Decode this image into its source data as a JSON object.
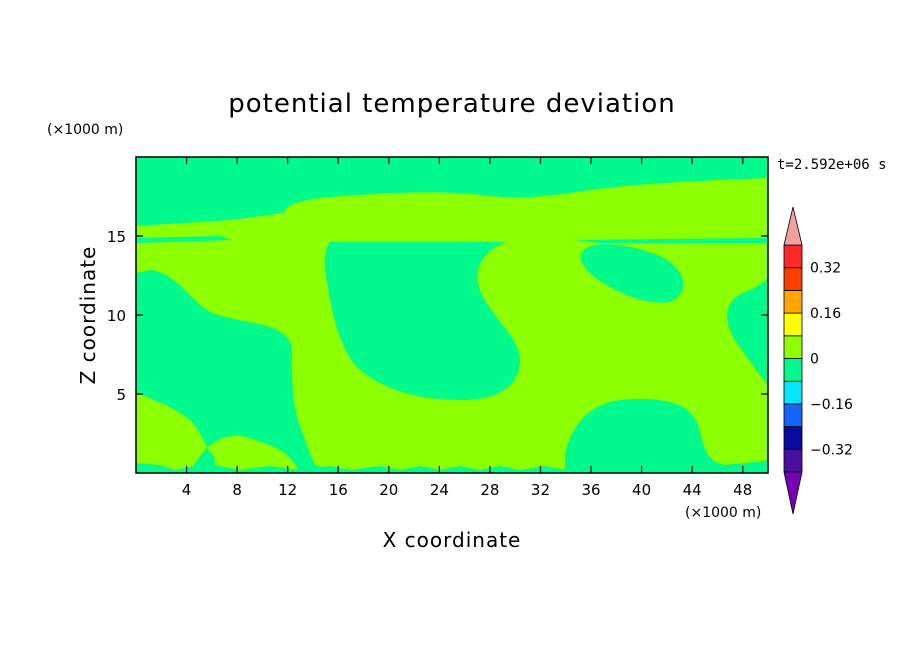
{
  "chart_data": {
    "type": "heatmap",
    "title": "potential temperature deviation",
    "xlabel": "X coordinate",
    "ylabel": "Z coordinate",
    "x_unit": "(×1000 m)",
    "y_unit": "(×1000 m)",
    "time_label": "t=2.592e+06 s",
    "xlim": [
      0,
      50
    ],
    "ylim": [
      0,
      20
    ],
    "x_ticks": [
      "4",
      "8",
      "12",
      "16",
      "20",
      "24",
      "28",
      "32",
      "36",
      "40",
      "44",
      "48"
    ],
    "y_ticks": [
      "5",
      "10",
      "15"
    ],
    "colorbar": {
      "levels": [
        -0.4,
        -0.32,
        -0.24,
        -0.16,
        -0.08,
        0,
        0.08,
        0.16,
        0.24,
        0.32,
        0.4
      ],
      "tick_labels": [
        "0.32",
        "0.16",
        "0",
        "−0.16",
        "−0.32"
      ],
      "colors": [
        "#4b0fa0",
        "#0a0aa0",
        "#1464ff",
        "#00e6ff",
        "#00fa8c",
        "#8cff00",
        "#ffff00",
        "#ffa500",
        "#ff3c00",
        "#ff2828"
      ],
      "over_color": "#f4a0a0",
      "under_color": "#7800b4"
    },
    "fields": {
      "background_level": "0 to 0.08",
      "background_color": "#8cff00",
      "region_level": "-0.08 to 0",
      "region_color": "#00fa8c"
    }
  }
}
